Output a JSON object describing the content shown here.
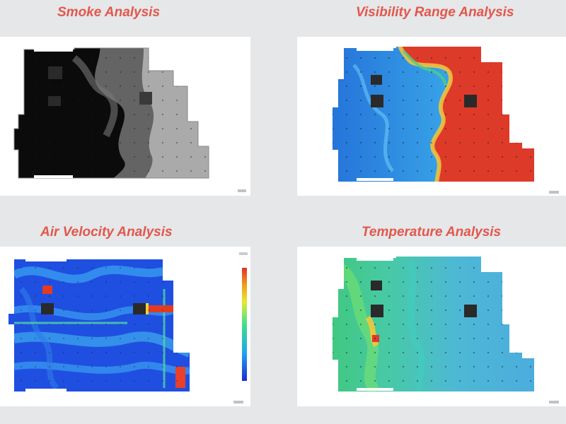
{
  "panels": [
    {
      "id": "smoke",
      "title": "Smoke Analysis"
    },
    {
      "id": "visibility",
      "title": "Visibility Range Analysis"
    },
    {
      "id": "velocity",
      "title": "Air Velocity Analysis"
    },
    {
      "id": "temperature",
      "title": "Temperature Analysis"
    }
  ],
  "colors": {
    "title": "#e2574c",
    "background": "#e6e7e9",
    "panel": "#ffffff"
  }
}
